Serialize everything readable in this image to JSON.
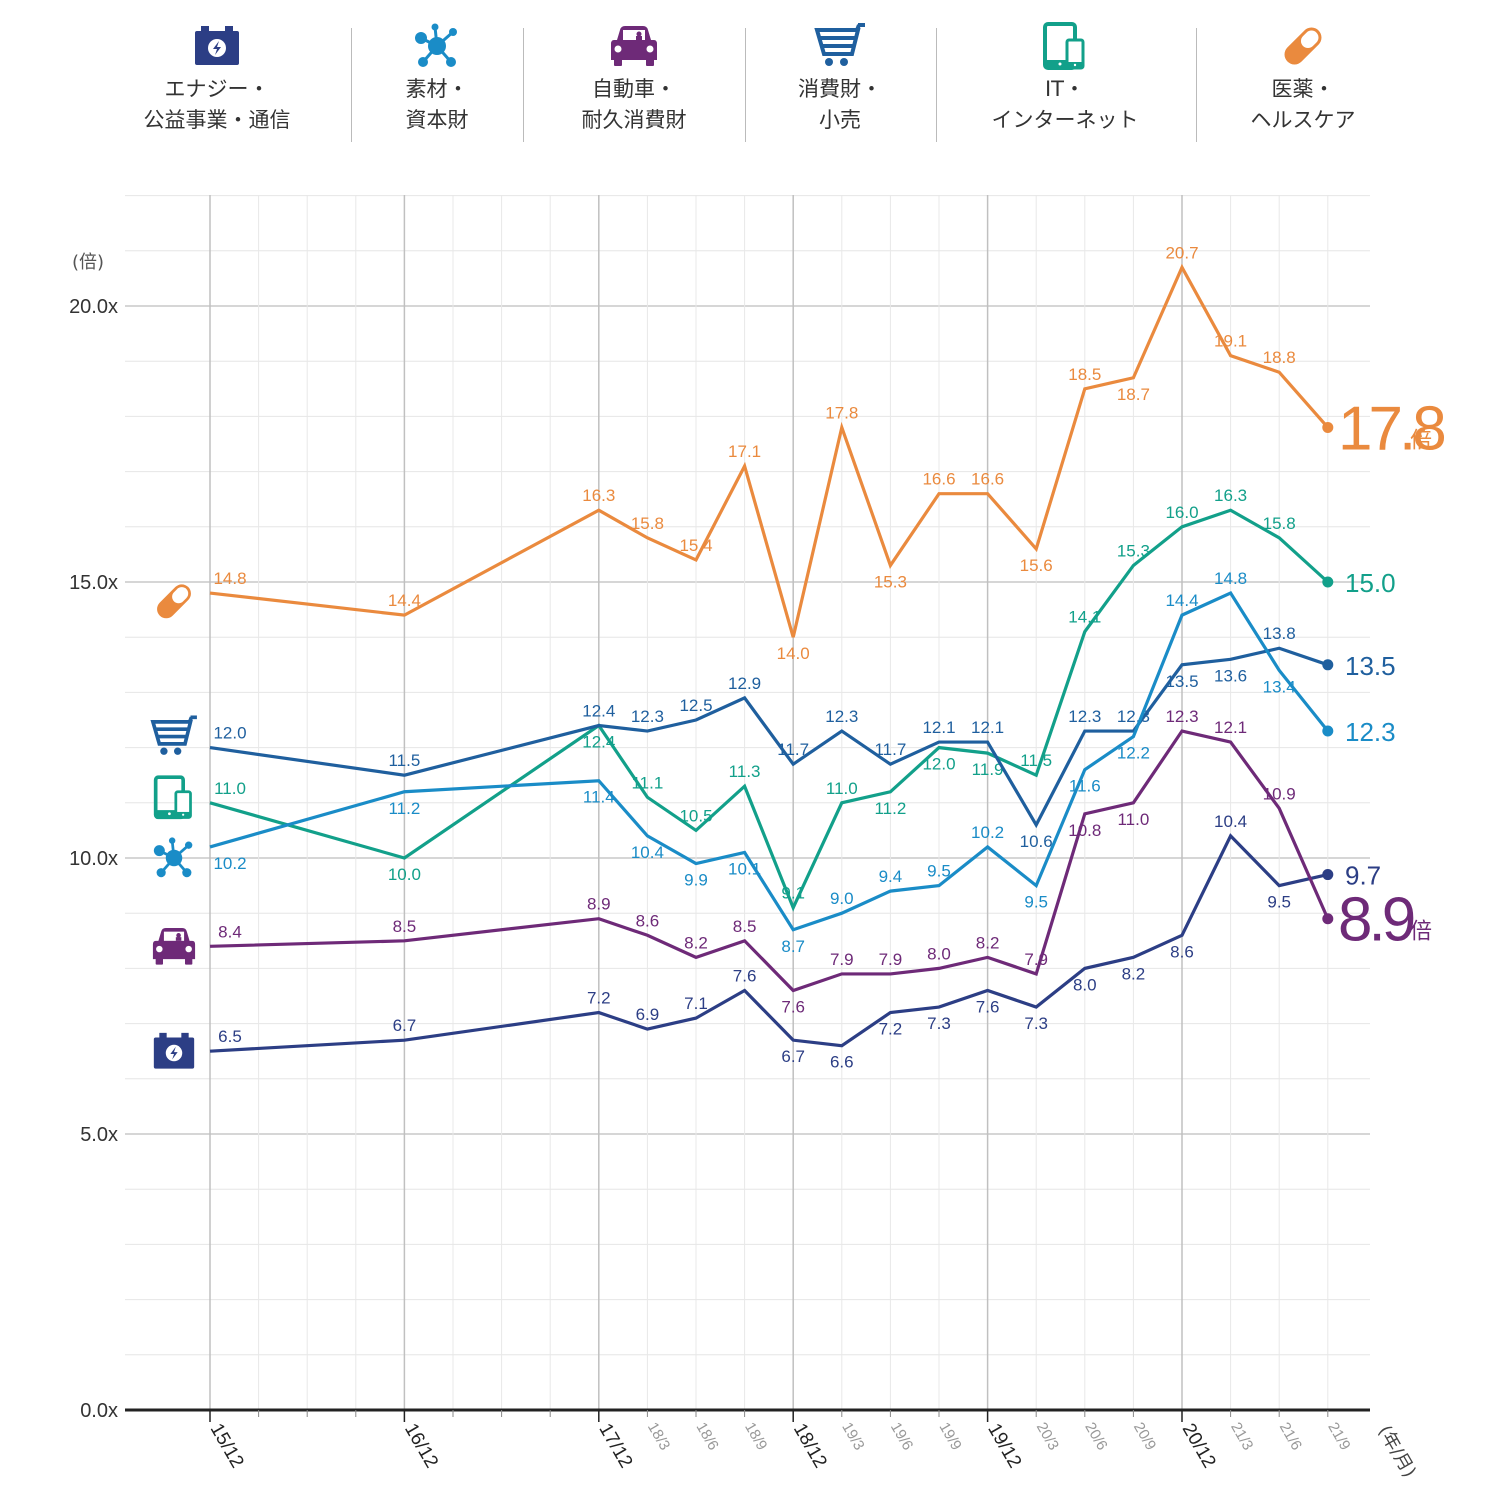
{
  "legend": {
    "items": [
      {
        "key": "energy",
        "line1": "エナジー・",
        "line2": "公益事業・通信",
        "icon": "battery-icon",
        "color": "#2c3e85"
      },
      {
        "key": "materials",
        "line1": "素材・",
        "line2": "資本財",
        "icon": "molecule-icon",
        "color": "#1a8cc7"
      },
      {
        "key": "auto",
        "line1": "自動車・",
        "line2": "耐久消費財",
        "icon": "car-icon",
        "color": "#6e2a78"
      },
      {
        "key": "consumer",
        "line1": "消費財・",
        "line2": "小売",
        "icon": "cart-icon",
        "color": "#1f5f9e"
      },
      {
        "key": "it",
        "line1": "IT・",
        "line2": "インターネット",
        "icon": "tablet-phone-icon",
        "color": "#12a08a"
      },
      {
        "key": "pharma",
        "line1": "医薬・",
        "line2": "ヘルスケア",
        "icon": "pill-icon",
        "color": "#ea8a3e"
      }
    ]
  },
  "chart_data": {
    "type": "line",
    "title": "",
    "ylabel": "(倍)",
    "xlabel": "(年/月)",
    "ylim": [
      0,
      22
    ],
    "yticks": [
      0,
      5,
      10,
      15,
      20
    ],
    "ytick_labels": [
      "0.0x",
      "5.0x",
      "10.0x",
      "15.0x",
      "20.0x"
    ],
    "grid": true,
    "x": [
      "15/12",
      "16/12",
      "17/12",
      "18/3",
      "18/6",
      "18/9",
      "18/12",
      "19/3",
      "19/6",
      "19/9",
      "19/12",
      "20/3",
      "20/6",
      "20/9",
      "20/12",
      "21/3",
      "21/6",
      "21/9"
    ],
    "x_major": [
      "15/12",
      "16/12",
      "17/12",
      "18/12",
      "19/12",
      "20/12"
    ],
    "series": [
      {
        "key": "pharma",
        "name": "医薬・ヘルスケア",
        "color": "#ea8a3e",
        "values": [
          14.8,
          14.4,
          16.3,
          15.8,
          15.4,
          17.1,
          14.0,
          17.8,
          15.3,
          16.6,
          16.6,
          15.6,
          18.5,
          18.7,
          20.7,
          19.1,
          18.8,
          17.8
        ],
        "end_label": "17.8",
        "end_suffix": "倍"
      },
      {
        "key": "it",
        "name": "IT・インターネット",
        "color": "#12a08a",
        "values": [
          11.0,
          10.0,
          12.4,
          11.1,
          10.5,
          11.3,
          9.1,
          11.0,
          11.2,
          12.0,
          11.9,
          11.5,
          14.1,
          15.3,
          16.0,
          16.3,
          15.8,
          15.0
        ],
        "end_label": "15.0",
        "end_suffix": ""
      },
      {
        "key": "consumer",
        "name": "消費財・小売",
        "color": "#1f5f9e",
        "values": [
          12.0,
          11.5,
          12.4,
          12.3,
          12.5,
          12.9,
          11.7,
          12.3,
          11.7,
          12.1,
          12.1,
          10.6,
          12.3,
          12.3,
          13.5,
          13.6,
          13.8,
          13.5
        ],
        "end_label": "13.5",
        "end_suffix": ""
      },
      {
        "key": "materials",
        "name": "素材・資本財",
        "color": "#1a8cc7",
        "values": [
          10.2,
          11.2,
          11.4,
          10.4,
          9.9,
          10.1,
          8.7,
          9.0,
          9.4,
          9.5,
          10.2,
          9.5,
          11.6,
          12.2,
          14.4,
          14.8,
          13.4,
          12.3
        ],
        "end_label": "12.3",
        "end_suffix": ""
      },
      {
        "key": "energy",
        "name": "エナジー・公益事業・通信",
        "color": "#2c3e85",
        "values": [
          6.5,
          6.7,
          7.2,
          6.9,
          7.1,
          7.6,
          6.7,
          6.6,
          7.2,
          7.3,
          7.6,
          7.3,
          8.0,
          8.2,
          8.6,
          10.4,
          9.5,
          9.7
        ],
        "end_label": "9.7",
        "end_suffix": ""
      },
      {
        "key": "auto",
        "name": "自動車・耐久消費財",
        "color": "#6e2a78",
        "values": [
          8.4,
          8.5,
          8.9,
          8.6,
          8.2,
          8.5,
          7.6,
          7.9,
          7.9,
          8.0,
          8.2,
          7.9,
          10.8,
          11.0,
          12.3,
          12.1,
          10.9,
          8.9
        ],
        "end_label": "8.9",
        "end_suffix": "倍"
      }
    ]
  }
}
